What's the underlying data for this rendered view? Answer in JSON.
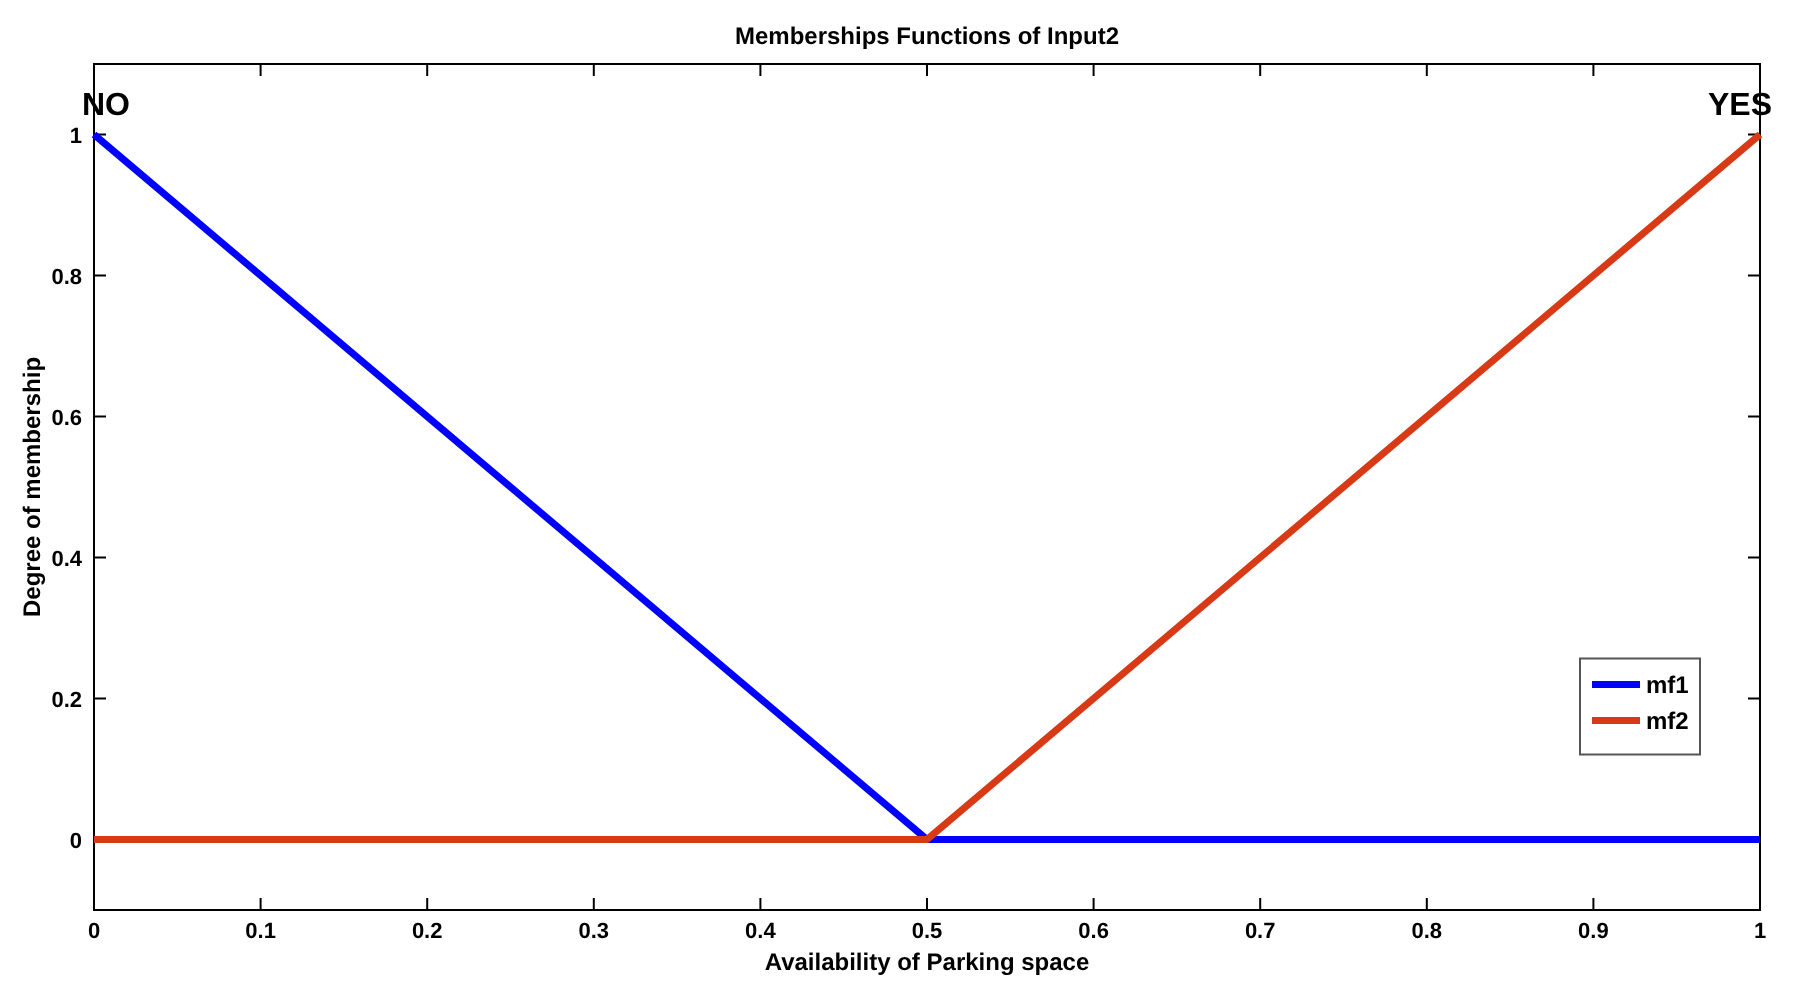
{
  "chart_data": {
    "type": "line",
    "title": "Memberships Functions of Input2",
    "xlabel": "Availability of Parking space",
    "ylabel": "Degree of membership",
    "series": [
      {
        "name": "mf1",
        "color": "#0000ff",
        "x": [
          0,
          0.5,
          1
        ],
        "values": [
          1,
          0,
          0
        ]
      },
      {
        "name": "mf2",
        "color": "#d83a16",
        "x": [
          0,
          0.5,
          1
        ],
        "values": [
          0,
          0,
          1
        ]
      }
    ],
    "xlim": [
      0,
      1
    ],
    "xticks": [
      0,
      0.1,
      0.2,
      0.3,
      0.4,
      0.5,
      0.6,
      0.7,
      0.8,
      0.9,
      1
    ],
    "ylim": [
      -0.1,
      1.1
    ],
    "yticks": [
      0,
      0.2,
      0.4,
      0.6,
      0.8,
      1
    ],
    "annotations": [
      {
        "text": "NO",
        "x": 0,
        "y": 1
      },
      {
        "text": "YES",
        "x": 1,
        "y": 1
      }
    ],
    "legend": "right",
    "grid": false,
    "line_style": "solid",
    "marker": "none"
  }
}
